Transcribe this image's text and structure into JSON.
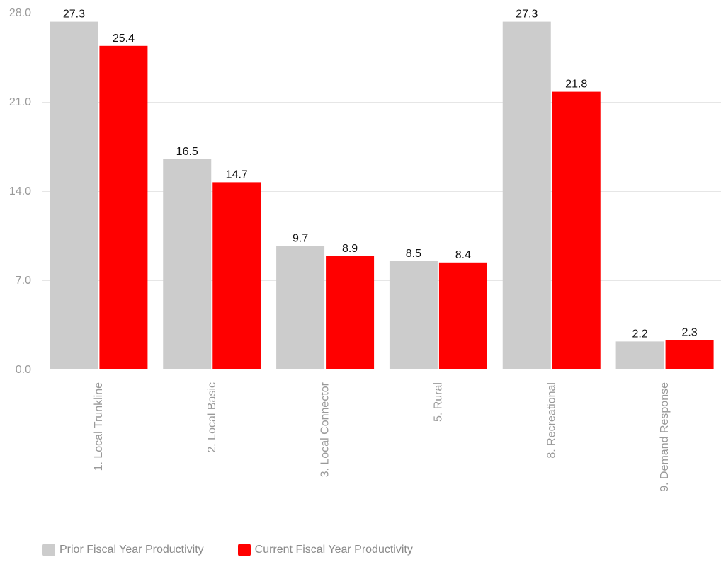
{
  "chart_data": {
    "type": "bar",
    "categories": [
      "1. Local Trunkline",
      "2. Local Basic",
      "3. Local Connector",
      "5. Rural",
      "8. Recreational",
      "9. Demand Response"
    ],
    "series": [
      {
        "name": "Prior Fiscal Year Productivity",
        "color": "#cccccc",
        "values": [
          27.3,
          16.5,
          9.7,
          8.5,
          27.3,
          2.2
        ],
        "labels": [
          "27.3",
          "16.5",
          "9.7",
          "8.5",
          "27.3",
          "2.2"
        ]
      },
      {
        "name": "Current Fiscal Year Productivity",
        "color": "#ff0000",
        "values": [
          25.4,
          14.7,
          8.9,
          8.4,
          21.8,
          2.3
        ],
        "labels": [
          "25.4",
          "14.7",
          "8.9",
          "8.4",
          "21.8",
          "2.3"
        ]
      }
    ],
    "ylim": [
      0,
      28
    ],
    "yticks": [
      "0.0",
      "7.0",
      "14.0",
      "21.0",
      "28.0"
    ],
    "grid": true,
    "legend_position": "bottom-left"
  }
}
